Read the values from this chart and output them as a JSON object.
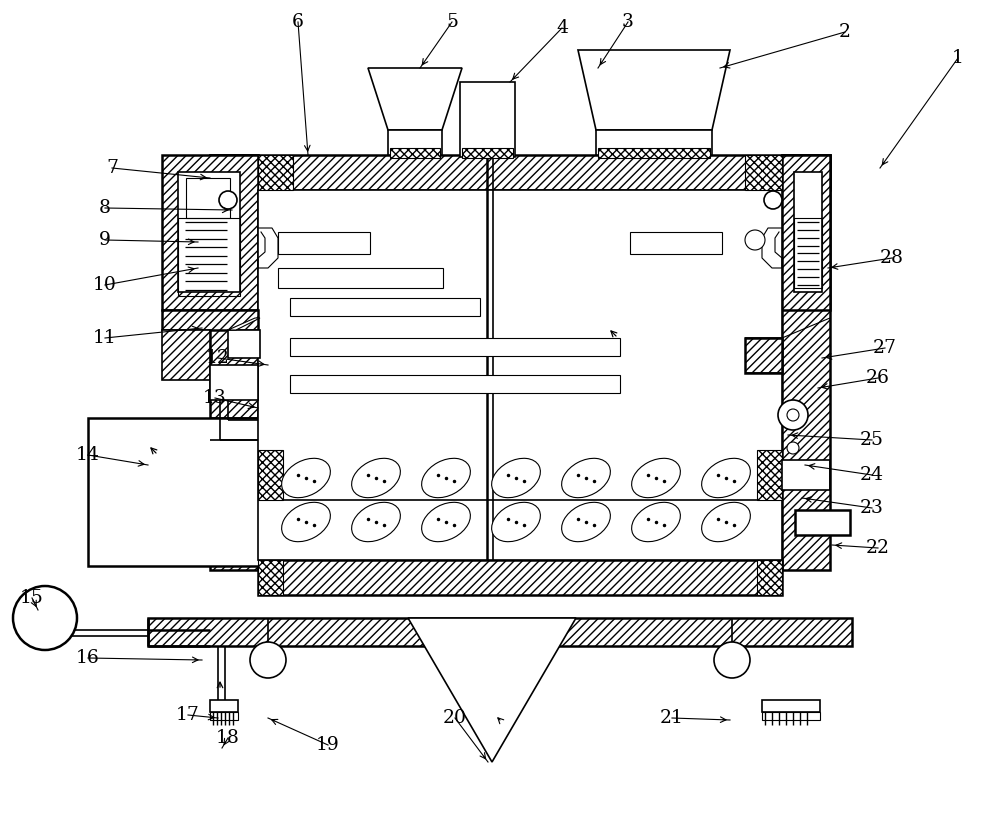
{
  "bg_color": "#ffffff",
  "figsize": [
    10.0,
    8.21
  ],
  "dpi": 100,
  "label_positions": {
    "1": [
      958,
      58,
      880,
      168
    ],
    "2": [
      845,
      32,
      720,
      68
    ],
    "3": [
      628,
      22,
      598,
      68
    ],
    "4": [
      562,
      28,
      510,
      82
    ],
    "5": [
      452,
      22,
      420,
      68
    ],
    "6": [
      298,
      22,
      308,
      155
    ],
    "7": [
      112,
      168,
      210,
      178
    ],
    "8": [
      105,
      208,
      232,
      210
    ],
    "9": [
      105,
      240,
      198,
      242
    ],
    "10": [
      105,
      285,
      198,
      268
    ],
    "11": [
      105,
      338,
      202,
      328
    ],
    "12": [
      218,
      358,
      268,
      365
    ],
    "13": [
      215,
      398,
      258,
      408
    ],
    "14": [
      88,
      455,
      148,
      465
    ],
    "15": [
      32,
      598,
      38,
      610
    ],
    "16": [
      88,
      658,
      202,
      660
    ],
    "17": [
      188,
      715,
      218,
      718
    ],
    "18": [
      228,
      738,
      222,
      748
    ],
    "19": [
      328,
      745,
      268,
      718
    ],
    "20": [
      455,
      718,
      488,
      762
    ],
    "21": [
      672,
      718,
      730,
      720
    ],
    "22": [
      878,
      548,
      832,
      545
    ],
    "23": [
      872,
      508,
      802,
      498
    ],
    "24": [
      872,
      475,
      805,
      465
    ],
    "25": [
      872,
      440,
      788,
      435
    ],
    "26": [
      878,
      378,
      818,
      388
    ],
    "27": [
      885,
      348,
      822,
      358
    ],
    "28": [
      892,
      258,
      828,
      268
    ]
  }
}
